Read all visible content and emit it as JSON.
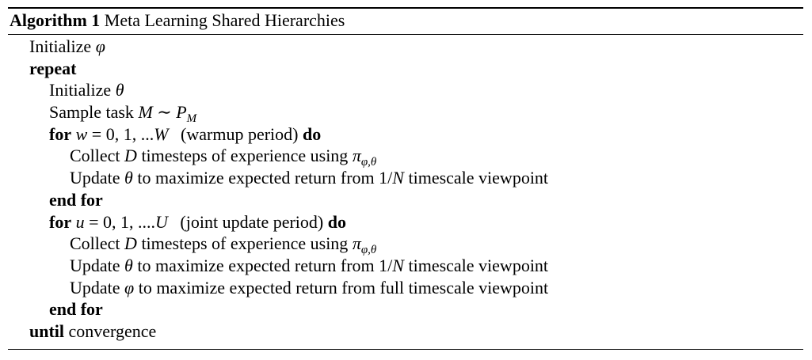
{
  "caption": {
    "label": "Algorithm 1",
    "title": "Meta Learning Shared Hierarchies"
  },
  "lines": [
    {
      "text": "Initialize",
      "phi": "φ"
    },
    {
      "kw": "repeat"
    },
    {
      "text": "Initialize",
      "theta": "θ"
    },
    {
      "text": "Sample task",
      "M": "M",
      "sim": "∼",
      "P": "P",
      "sub": "M"
    },
    {
      "kw_for": "for",
      "var": "w",
      "eq": "= 0, 1, ...",
      "end": "W",
      "note": "(warmup period)",
      "kw_do": "do"
    },
    {
      "pre": "Collect",
      "D": "D",
      "post": "timesteps of experience using",
      "pi": "π",
      "sub": "φ,θ"
    },
    {
      "pre": "Update",
      "theta": "θ",
      "post": "to maximize expected return from",
      "frac_num": "1/",
      "N": "N",
      "tail": "timescale viewpoint"
    },
    {
      "kw": "end for"
    },
    {
      "kw_for": "for",
      "var": "u",
      "eq": "= 0, 1, ....",
      "end": "U",
      "note": "(joint update period)",
      "kw_do": "do"
    },
    {
      "pre": "Collect",
      "D": "D",
      "post": "timesteps of experience using",
      "pi": "π",
      "sub": "φ,θ"
    },
    {
      "pre": "Update",
      "theta": "θ",
      "post": "to maximize expected return from",
      "frac_num": "1/",
      "N": "N",
      "tail": "timescale viewpoint"
    },
    {
      "pre": "Update",
      "phi": "φ",
      "post": "to maximize expected return from full timescale viewpoint"
    },
    {
      "kw": "end for"
    },
    {
      "kw": "until",
      "text": "convergence"
    }
  ]
}
